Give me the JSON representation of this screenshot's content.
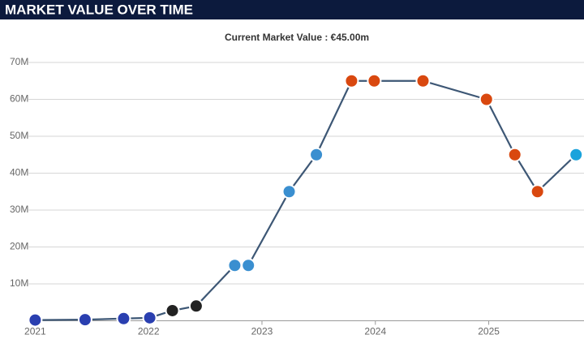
{
  "header": {
    "title": "MARKET VALUE OVER TIME"
  },
  "chart_data": {
    "type": "line",
    "title": "Current Market Value : €45.00m",
    "x": [
      2021.0,
      2021.44,
      2021.78,
      2022.01,
      2022.21,
      2022.42,
      2022.76,
      2022.88,
      2023.24,
      2023.48,
      2023.79,
      2023.99,
      2024.42,
      2024.98,
      2025.23,
      2025.43,
      2025.77
    ],
    "series": [
      {
        "color": "#3d5775",
        "values": [
          0.2,
          0.3,
          0.6,
          0.8,
          2.75,
          4,
          15,
          15,
          35,
          45,
          65,
          65,
          65,
          60,
          45,
          35,
          45
        ],
        "marker_colors": [
          "#2a3fb0",
          "#2a3fb0",
          "#2a3fb0",
          "#2a3fb0",
          "#222222",
          "#222222",
          "#3a8fd0",
          "#3a8fd0",
          "#3a8fd0",
          "#3a8fd0",
          "#d9480f",
          "#d9480f",
          "#d9480f",
          "#d9480f",
          "#d9480f",
          "#d9480f",
          "#1aa3dc"
        ]
      }
    ],
    "xlim": [
      2020.94,
      2025.84
    ],
    "xticks": [
      2021,
      2022,
      2023,
      2024,
      2025
    ],
    "ylim": [
      0,
      70
    ],
    "yticks": [
      {
        "value": 10,
        "label": "10M"
      },
      {
        "value": 20,
        "label": "20M"
      },
      {
        "value": 30,
        "label": "30M"
      },
      {
        "value": 40,
        "label": "40M"
      },
      {
        "value": 50,
        "label": "50M"
      },
      {
        "value": 60,
        "label": "60M"
      },
      {
        "value": 70,
        "label": "70M"
      }
    ],
    "grid": true
  }
}
